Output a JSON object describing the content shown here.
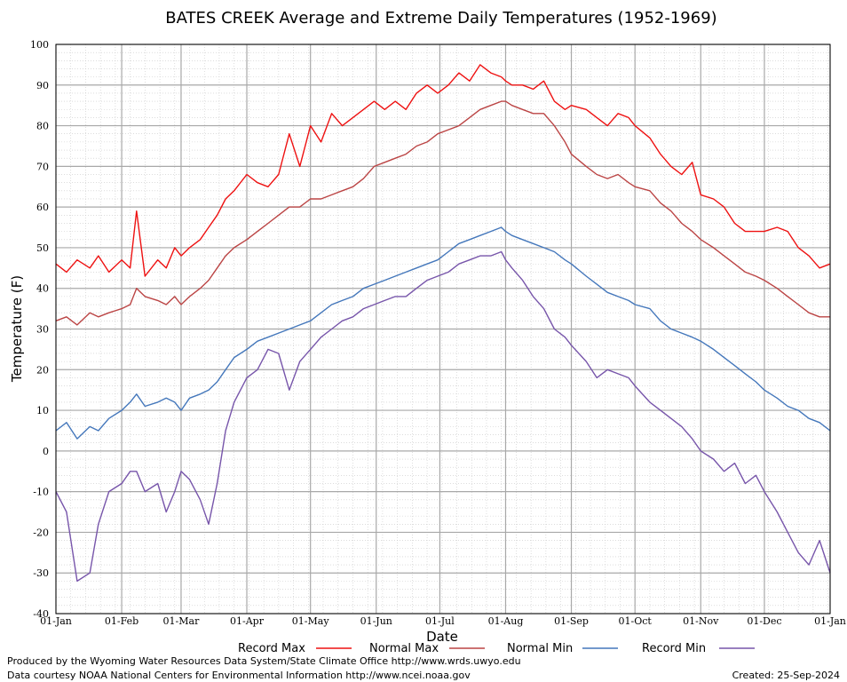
{
  "chart_data": {
    "type": "line",
    "title": "BATES CREEK Average and Extreme Daily Temperatures (1952-1969)",
    "xlabel": "Date",
    "ylabel": "Temperature (F)",
    "ylim": [
      -40,
      100
    ],
    "yticks": [
      "100",
      "90",
      "80",
      "70",
      "60",
      "50",
      "40",
      "30",
      "20",
      "10",
      "0",
      "-10",
      "-20",
      "-30",
      "-40"
    ],
    "xticks": [
      "01-Jan",
      "01-Feb",
      "01-Mar",
      "01-Apr",
      "01-May",
      "01-Jun",
      "01-Jul",
      "01-Aug",
      "01-Sep",
      "01-Oct",
      "01-Nov",
      "01-Dec",
      "01-Jan"
    ],
    "xtick_days": [
      0,
      31,
      59,
      90,
      120,
      151,
      181,
      212,
      243,
      273,
      304,
      334,
      365
    ],
    "grid": true,
    "legend_position": "bottom",
    "series": [
      {
        "name": "Record Max",
        "color": "#ee1111",
        "days": [
          0,
          5,
          10,
          16,
          20,
          25,
          31,
          35,
          38,
          42,
          48,
          52,
          56,
          59,
          63,
          68,
          72,
          76,
          80,
          84,
          90,
          95,
          100,
          105,
          110,
          115,
          120,
          125,
          130,
          135,
          140,
          145,
          150,
          155,
          160,
          165,
          170,
          175,
          180,
          185,
          190,
          195,
          200,
          205,
          210,
          212,
          215,
          220,
          225,
          230,
          235,
          240,
          243,
          250,
          255,
          260,
          265,
          270,
          273,
          280,
          285,
          290,
          295,
          300,
          304,
          310,
          315,
          320,
          325,
          330,
          334,
          340,
          345,
          350,
          355,
          360,
          365
        ],
        "values": [
          46,
          44,
          47,
          45,
          48,
          44,
          47,
          45,
          59,
          43,
          47,
          45,
          50,
          48,
          50,
          52,
          55,
          58,
          62,
          64,
          68,
          66,
          65,
          68,
          78,
          70,
          80,
          76,
          83,
          80,
          82,
          84,
          86,
          84,
          86,
          84,
          88,
          90,
          88,
          90,
          93,
          91,
          95,
          93,
          92,
          91,
          90,
          90,
          89,
          91,
          86,
          84,
          85,
          84,
          82,
          80,
          83,
          82,
          80,
          77,
          73,
          70,
          68,
          71,
          63,
          62,
          60,
          56,
          54,
          54,
          54,
          55,
          54,
          50,
          48,
          45,
          46
        ]
      },
      {
        "name": "Normal Max",
        "color": "#bb4444",
        "days": [
          0,
          5,
          10,
          16,
          20,
          25,
          31,
          35,
          38,
          42,
          48,
          52,
          56,
          59,
          63,
          68,
          72,
          76,
          80,
          84,
          90,
          95,
          100,
          105,
          110,
          115,
          120,
          125,
          130,
          135,
          140,
          145,
          150,
          155,
          160,
          165,
          170,
          175,
          180,
          185,
          190,
          195,
          200,
          205,
          210,
          212,
          215,
          220,
          225,
          230,
          235,
          240,
          243,
          250,
          255,
          260,
          265,
          270,
          273,
          280,
          285,
          290,
          295,
          300,
          304,
          310,
          315,
          320,
          325,
          330,
          334,
          340,
          345,
          350,
          355,
          360,
          365
        ],
        "values": [
          32,
          33,
          31,
          34,
          33,
          34,
          35,
          36,
          40,
          38,
          37,
          36,
          38,
          36,
          38,
          40,
          42,
          45,
          48,
          50,
          52,
          54,
          56,
          58,
          60,
          60,
          62,
          62,
          63,
          64,
          65,
          67,
          70,
          71,
          72,
          73,
          75,
          76,
          78,
          79,
          80,
          82,
          84,
          85,
          86,
          86,
          85,
          84,
          83,
          83,
          80,
          76,
          73,
          70,
          68,
          67,
          68,
          66,
          65,
          64,
          61,
          59,
          56,
          54,
          52,
          50,
          48,
          46,
          44,
          43,
          42,
          40,
          38,
          36,
          34,
          33,
          33
        ]
      },
      {
        "name": "Normal Min",
        "color": "#4477bb",
        "days": [
          0,
          5,
          10,
          16,
          20,
          25,
          31,
          35,
          38,
          42,
          48,
          52,
          56,
          59,
          63,
          68,
          72,
          76,
          80,
          84,
          90,
          95,
          100,
          105,
          110,
          115,
          120,
          125,
          130,
          135,
          140,
          145,
          150,
          155,
          160,
          165,
          170,
          175,
          180,
          185,
          190,
          195,
          200,
          205,
          210,
          212,
          215,
          220,
          225,
          230,
          235,
          240,
          243,
          250,
          255,
          260,
          265,
          270,
          273,
          280,
          285,
          290,
          295,
          300,
          304,
          310,
          315,
          320,
          325,
          330,
          334,
          340,
          345,
          350,
          355,
          360,
          365
        ],
        "values": [
          5,
          7,
          3,
          6,
          5,
          8,
          10,
          12,
          14,
          11,
          12,
          13,
          12,
          10,
          13,
          14,
          15,
          17,
          20,
          23,
          25,
          27,
          28,
          29,
          30,
          31,
          32,
          34,
          36,
          37,
          38,
          40,
          41,
          42,
          43,
          44,
          45,
          46,
          47,
          49,
          51,
          52,
          53,
          54,
          55,
          54,
          53,
          52,
          51,
          50,
          49,
          47,
          46,
          43,
          41,
          39,
          38,
          37,
          36,
          35,
          32,
          30,
          29,
          28,
          27,
          25,
          23,
          21,
          19,
          17,
          15,
          13,
          11,
          10,
          8,
          7,
          5
        ]
      },
      {
        "name": "Record Min",
        "color": "#7755aa",
        "days": [
          0,
          5,
          10,
          16,
          20,
          25,
          31,
          35,
          38,
          42,
          48,
          52,
          56,
          59,
          63,
          68,
          72,
          76,
          80,
          84,
          90,
          95,
          100,
          105,
          110,
          115,
          120,
          125,
          130,
          135,
          140,
          145,
          150,
          155,
          160,
          165,
          170,
          175,
          180,
          185,
          190,
          195,
          200,
          205,
          210,
          212,
          215,
          220,
          225,
          230,
          235,
          240,
          243,
          250,
          255,
          260,
          265,
          270,
          273,
          280,
          285,
          290,
          295,
          300,
          304,
          310,
          315,
          320,
          325,
          330,
          334,
          340,
          345,
          350,
          355,
          360,
          365
        ],
        "values": [
          -10,
          -15,
          -32,
          -30,
          -18,
          -10,
          -8,
          -5,
          -5,
          -10,
          -8,
          -15,
          -10,
          -5,
          -7,
          -12,
          -18,
          -8,
          5,
          12,
          18,
          20,
          25,
          24,
          15,
          22,
          25,
          28,
          30,
          32,
          33,
          35,
          36,
          37,
          38,
          38,
          40,
          42,
          43,
          44,
          46,
          47,
          48,
          48,
          49,
          47,
          45,
          42,
          38,
          35,
          30,
          28,
          26,
          22,
          18,
          20,
          19,
          18,
          16,
          12,
          10,
          8,
          6,
          3,
          0,
          -2,
          -5,
          -3,
          -8,
          -6,
          -10,
          -15,
          -20,
          -25,
          -28,
          -22,
          -30
        ]
      }
    ]
  },
  "legend": {
    "record_max": "Record Max",
    "normal_max": "Normal Max",
    "normal_min": "Normal Min",
    "record_min": "Record Min"
  },
  "footer": {
    "produced": "Produced by the Wyoming Water Resources Data System/State Climate Office http://www.wrds.uwyo.edu",
    "courtesy": "Data courtesy NOAA National Centers for Environmental Information http://www.ncei.noaa.gov",
    "created": "Created:  25-Sep-2024"
  }
}
